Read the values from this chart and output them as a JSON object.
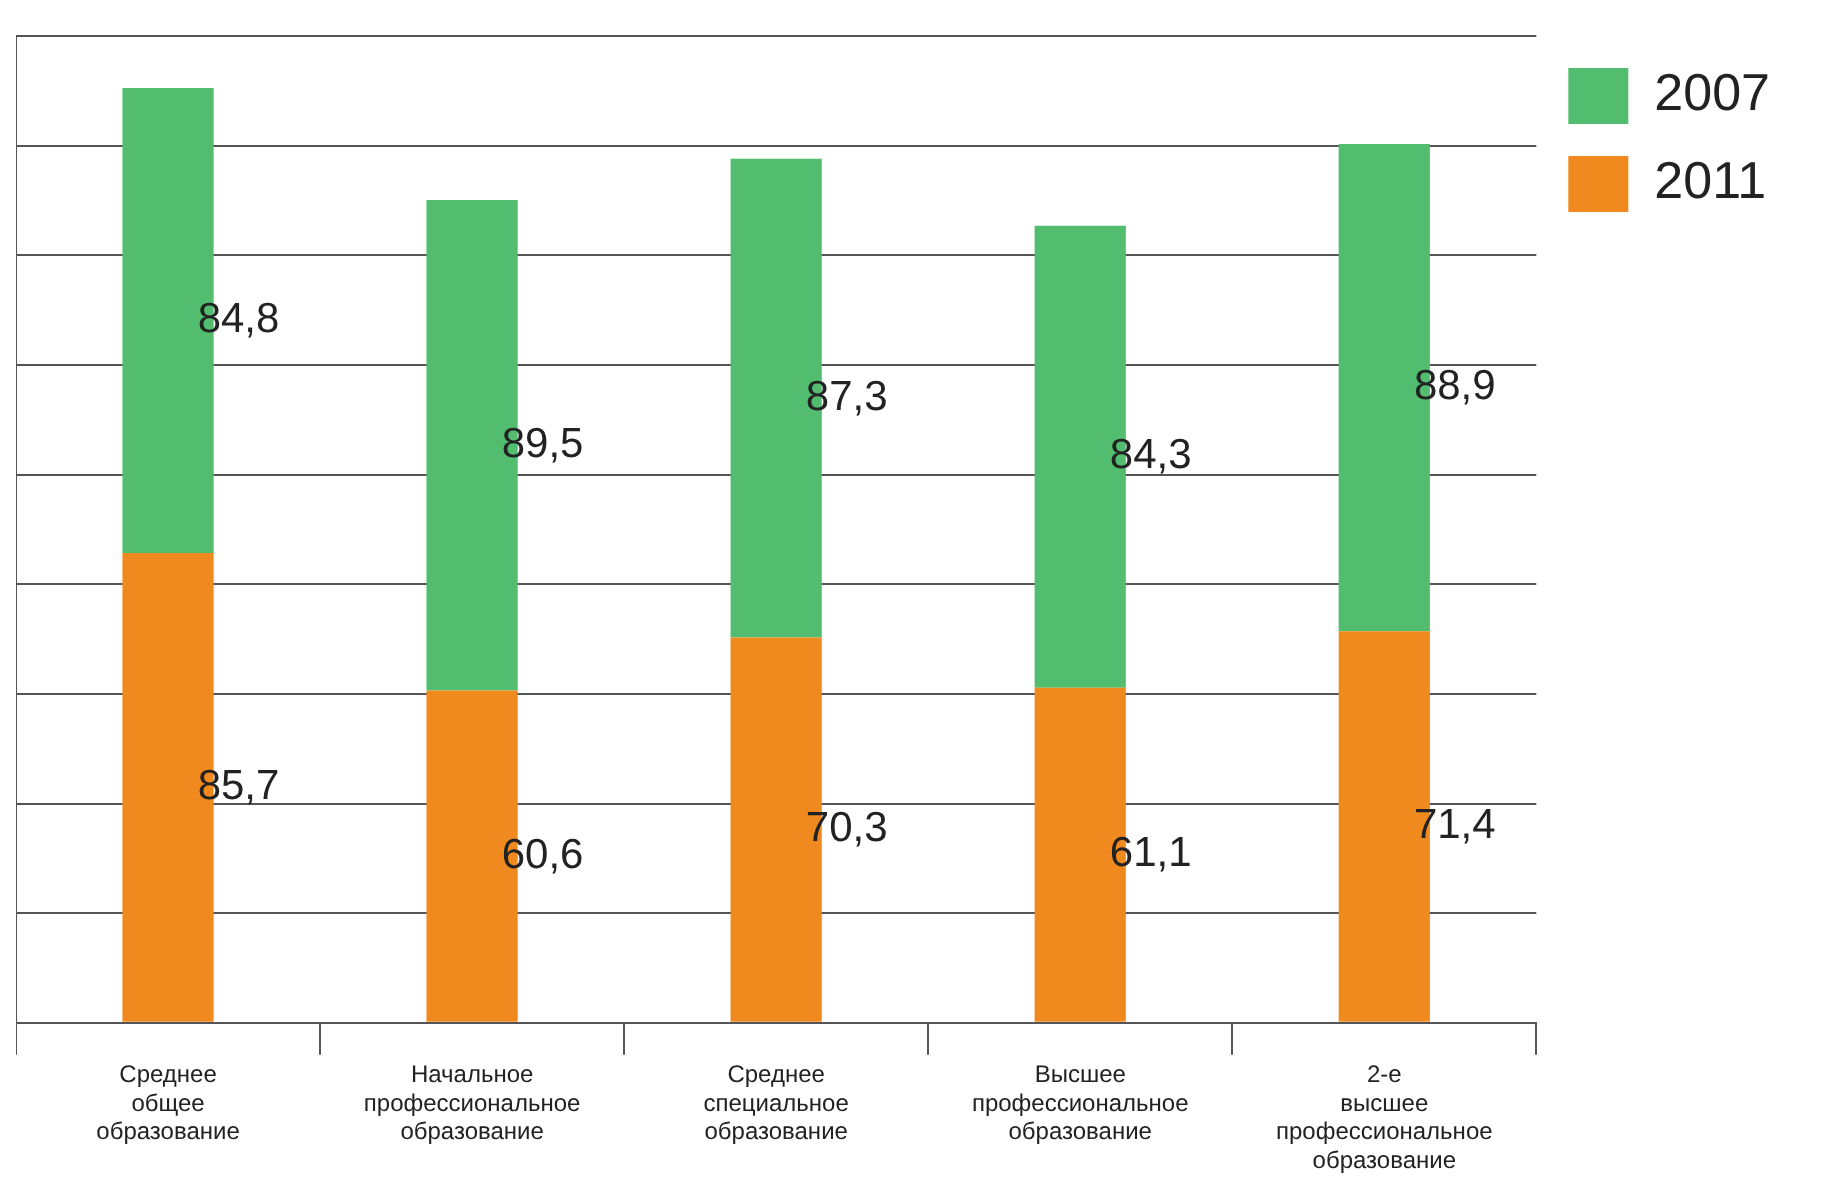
{
  "chart_data": {
    "type": "bar",
    "stacked": true,
    "categories": [
      "Среднее общее образование",
      "Начальное профессиональное образование",
      "Среднее специальное образование",
      "Высшее профессиональное образование",
      "2-е высшее профессиональное образование"
    ],
    "series": [
      {
        "name": "2011",
        "color": "#f08a1e",
        "values": [
          85.7,
          60.6,
          70.3,
          61.1,
          71.4
        ],
        "value_labels": [
          "85,7",
          "60,6",
          "70,3",
          "61,1",
          "71,4"
        ]
      },
      {
        "name": "2007",
        "color": "#52bd6e",
        "values": [
          84.8,
          89.5,
          87.3,
          84.3,
          88.9
        ],
        "value_labels": [
          "84,8",
          "89,5",
          "87,3",
          "84,3",
          "88,9"
        ]
      }
    ],
    "tick_labels": "x",
    "grid": "y",
    "legend": "top right"
  }
}
